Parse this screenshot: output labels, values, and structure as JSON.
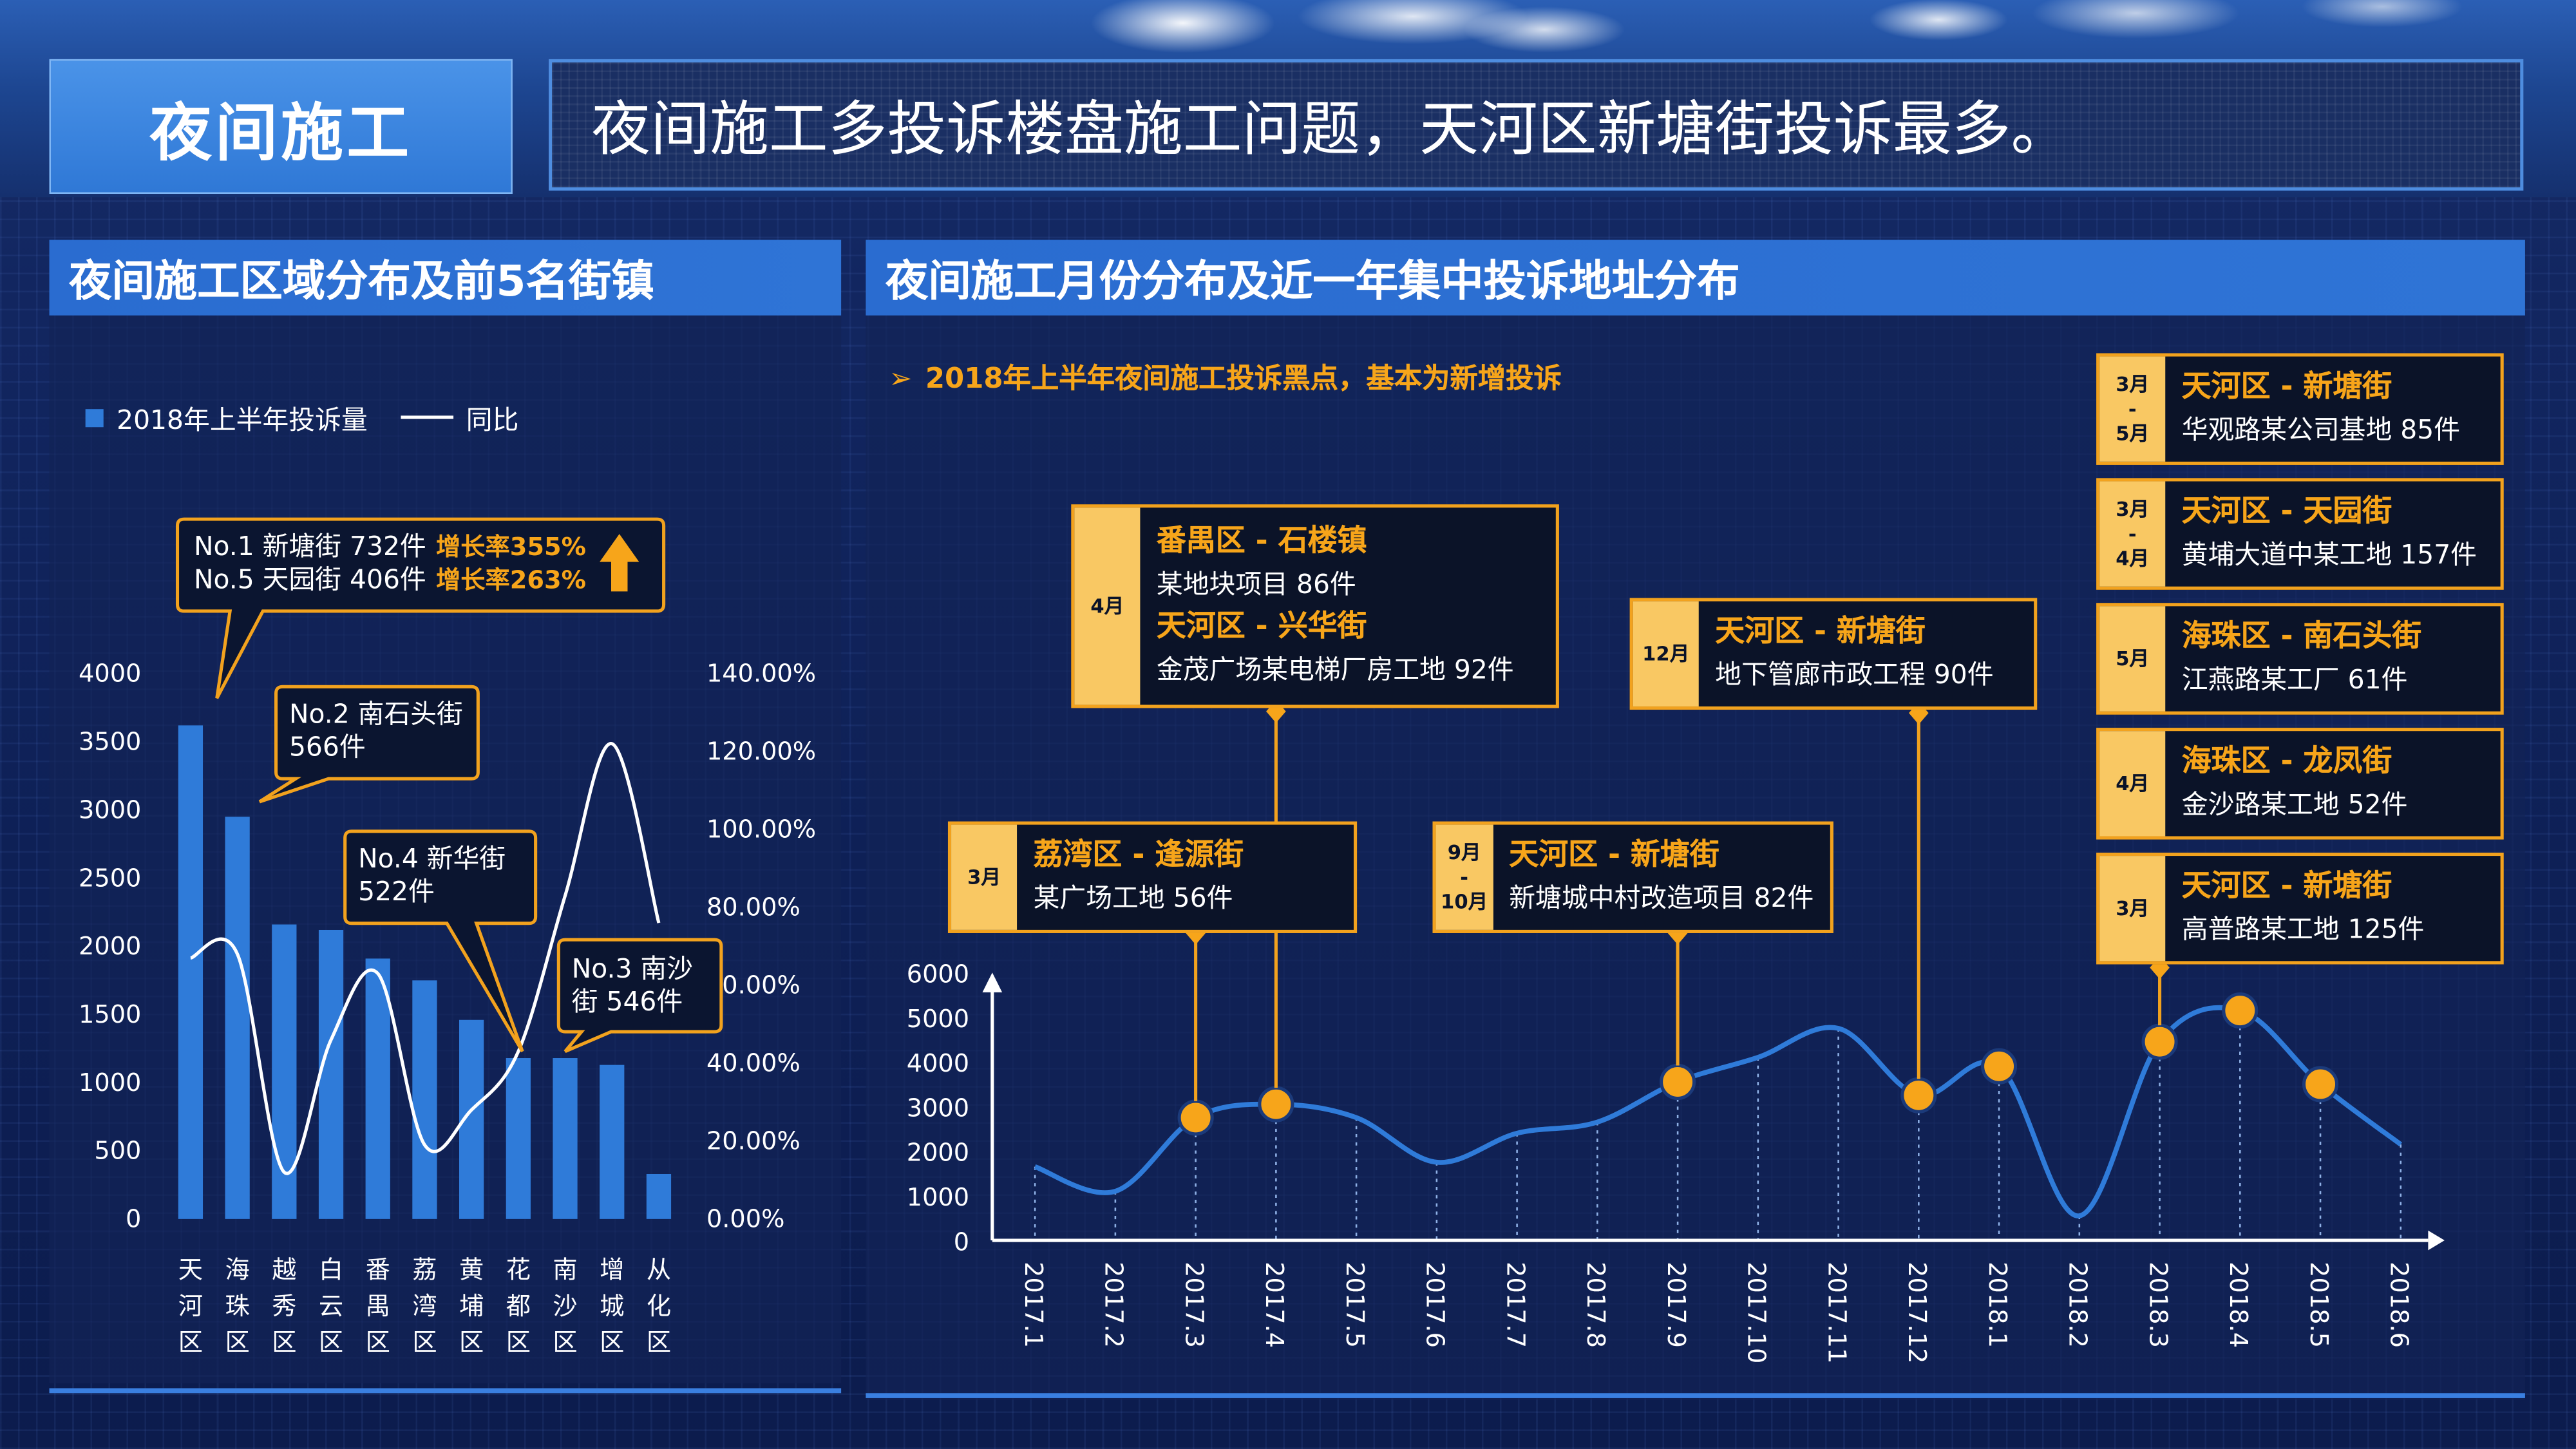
{
  "page_title": "夜间施工",
  "headline": "夜间施工多投诉楼盘施工问题，天河区新塘街投诉最多。",
  "left_panel": {
    "title": "夜间施工区域分布及前5名街镇",
    "legend": {
      "bars": "2018年上半年投诉量",
      "line": "同比"
    },
    "callouts": {
      "c1": {
        "line1": "No.1 新塘街 732件",
        "line1_rate": "增长率355%",
        "line2": "No.5 天园街 406件",
        "line2_rate": "增长率263%"
      },
      "c2": {
        "line1": "No.2 南石头街",
        "line2": "566件"
      },
      "c3": {
        "line1": "No.4 新华街",
        "line2": "522件"
      },
      "c4": {
        "line1": "No.3 南沙",
        "line2": "街 546件"
      }
    }
  },
  "right_panel": {
    "title": "夜间施工月份分布及近一年集中投诉地址分布",
    "note": "2018年上半年夜间施工投诉黑点，基本为新增投诉",
    "hotspots": [
      {
        "label": [
          "3月"
        ],
        "title": "荔湾区 - 逢源街",
        "desc": "某广场工地 56件"
      },
      {
        "label": [
          "4月"
        ],
        "title": "番禺区 - 石楼镇",
        "desc": "某地块项目 86件",
        "title2": "天河区 - 兴华街",
        "desc2": "金茂广场某电梯厂房工地 92件"
      },
      {
        "label": [
          "9月",
          "-",
          "10月"
        ],
        "title": "天河区 - 新塘街",
        "desc": "新塘城中村改造项目 82件"
      },
      {
        "label": [
          "12月"
        ],
        "title": "天河区 - 新塘街",
        "desc": "地下管廊市政工程 90件"
      },
      {
        "label": [
          "3月",
          "-",
          "5月"
        ],
        "title": "天河区 - 新塘街",
        "desc": "华观路某公司基地 85件"
      },
      {
        "label": [
          "3月",
          "-",
          "4月"
        ],
        "title": "天河区 - 天园街",
        "desc": "黄埔大道中某工地 157件"
      },
      {
        "label": [
          "5月"
        ],
        "title": "海珠区 - 南石头街",
        "desc": "江燕路某工厂 61件"
      },
      {
        "label": [
          "4月"
        ],
        "title": "海珠区 - 龙凤街",
        "desc": "金沙路某工地 52件"
      },
      {
        "label": [
          "3月"
        ],
        "title": "天河区 - 新塘街",
        "desc": "高普路某工地 125件"
      }
    ]
  },
  "colors": {
    "accent": "#f2a21e",
    "bar": "#2f7bd9",
    "line": "#2f7bd9",
    "header": "#2f74d6"
  },
  "chart_data": [
    {
      "type": "bar",
      "categories": [
        "天河区",
        "海珠区",
        "越秀区",
        "白云区",
        "番禺区",
        "荔湾区",
        "黄埔区",
        "花都区",
        "南沙区",
        "增城区",
        "从化区"
      ],
      "series": [
        {
          "name": "2018年上半年投诉量",
          "type": "bar",
          "axis": "left",
          "values": [
            3620,
            2950,
            2160,
            2120,
            1910,
            1750,
            1460,
            1180,
            1180,
            1130,
            330
          ]
        },
        {
          "name": "同比",
          "type": "line",
          "axis": "right",
          "values": [
            0.67,
            0.68,
            0.12,
            0.46,
            0.63,
            0.19,
            0.28,
            0.43,
            0.83,
            1.22,
            0.76
          ]
        }
      ],
      "ylim": [
        0,
        4000
      ],
      "yticks": [
        "0",
        "500",
        "1000",
        "1500",
        "2000",
        "2500",
        "3000",
        "3500",
        "4000"
      ],
      "y2lim": [
        0,
        1.4
      ],
      "y2ticks": [
        "0.00%",
        "20.00%",
        "40.00%",
        "60.00%",
        "80.00%",
        "100.00%",
        "120.00%",
        "140.00%"
      ]
    },
    {
      "type": "line",
      "x": [
        "2017.1",
        "2017.2",
        "2017.3",
        "2017.4",
        "2017.5",
        "2017.6",
        "2017.7",
        "2017.8",
        "2017.9",
        "2017.10",
        "2017.11",
        "2017.12",
        "2018.1",
        "2018.2",
        "2018.3",
        "2018.4",
        "2018.5",
        "2018.6"
      ],
      "series": [
        {
          "values": [
            1650,
            1100,
            2750,
            3050,
            2750,
            1750,
            2400,
            2650,
            3550,
            4100,
            4750,
            3250,
            3900,
            550,
            4450,
            5150,
            3500,
            2150
          ]
        }
      ],
      "highlighted": [
        "2017.3",
        "2017.4",
        "2017.9",
        "2017.12",
        "2018.1",
        "2018.3",
        "2018.4",
        "2018.5"
      ],
      "ylim": [
        0,
        6000
      ],
      "yticks": [
        "0",
        "1000",
        "2000",
        "3000",
        "4000",
        "5000",
        "6000"
      ]
    }
  ]
}
